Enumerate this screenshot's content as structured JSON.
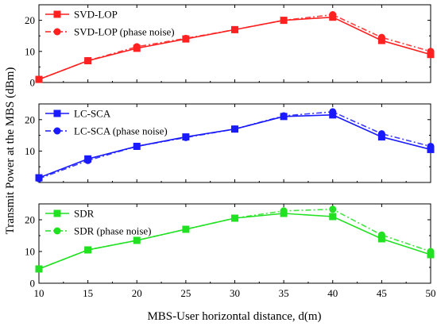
{
  "chart_data": [
    {
      "type": "line",
      "title": "",
      "xlabel": "MBS-User horizontal distance, d(m)",
      "ylabel": "Transmit Power at the MBS (dBm)",
      "x": [
        10,
        15,
        20,
        25,
        30,
        35,
        40,
        45,
        50
      ],
      "xlim": [
        10,
        50
      ],
      "ylim": [
        0,
        25
      ],
      "yticks": [
        0,
        10,
        20
      ],
      "legend_position": "top-left",
      "color": "#ff2020",
      "series": [
        {
          "name": "SVD-LOP",
          "style": "solid",
          "marker": "square",
          "values": [
            1,
            7,
            11,
            14,
            17,
            20,
            21,
            13.5,
            9
          ]
        },
        {
          "name": "SVD-LOP (phase noise)",
          "style": "dash-dot",
          "marker": "circle",
          "values": [
            1,
            7,
            11.5,
            14.2,
            17,
            20,
            21.8,
            14.5,
            10
          ]
        }
      ]
    },
    {
      "type": "line",
      "title": "",
      "xlabel": "MBS-User horizontal distance, d(m)",
      "ylabel": "Transmit Power at the MBS (dBm)",
      "x": [
        10,
        15,
        20,
        25,
        30,
        35,
        40,
        45,
        50
      ],
      "xlim": [
        10,
        50
      ],
      "ylim": [
        0,
        25
      ],
      "yticks": [
        10,
        20
      ],
      "legend_position": "top-left",
      "color": "#1a1aff",
      "series": [
        {
          "name": "LC-SCA",
          "style": "solid",
          "marker": "square",
          "values": [
            1.5,
            7.5,
            11.5,
            14.5,
            17,
            21,
            21.5,
            14.5,
            10.5
          ]
        },
        {
          "name": "LC-SCA (phase noise)",
          "style": "dash-dot",
          "marker": "circle",
          "values": [
            1.2,
            7,
            11.5,
            14.3,
            17,
            21.2,
            22.5,
            15.5,
            11.5
          ]
        }
      ]
    },
    {
      "type": "line",
      "title": "",
      "xlabel": "MBS-User horizontal distance, d(m)",
      "ylabel": "Transmit Power at the MBS (dBm)",
      "x": [
        10,
        15,
        20,
        25,
        30,
        35,
        40,
        45,
        50
      ],
      "xlim": [
        10,
        50
      ],
      "ylim": [
        0,
        25
      ],
      "yticks": [
        0,
        10,
        20
      ],
      "xticks": [
        10,
        15,
        20,
        25,
        30,
        35,
        40,
        45,
        50
      ],
      "legend_position": "top-left",
      "color": "#22e022",
      "series": [
        {
          "name": "SDR",
          "style": "solid",
          "marker": "square",
          "values": [
            4.5,
            10.5,
            13.5,
            17,
            20.5,
            22,
            21,
            14,
            9
          ]
        },
        {
          "name": "SDR (phase noise)",
          "style": "dash-dot",
          "marker": "circle",
          "values": [
            4.5,
            10.5,
            13.5,
            17,
            20.5,
            22.8,
            23.3,
            15.2,
            10
          ]
        }
      ]
    }
  ]
}
